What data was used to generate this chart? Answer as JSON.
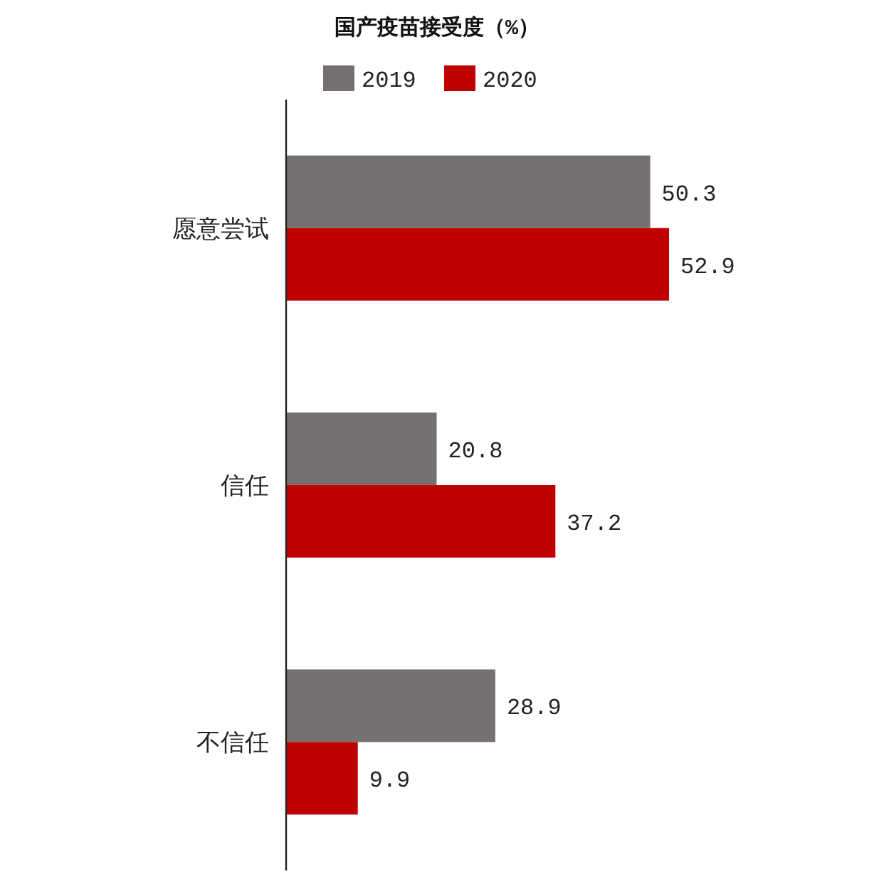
{
  "chart_data": {
    "type": "bar",
    "orientation": "horizontal",
    "title": "国产疫苗接受度（%）",
    "categories": [
      "愿意尝试",
      "信任",
      "不信任"
    ],
    "series": [
      {
        "name": "2019",
        "color": "#767171",
        "values": [
          50.3,
          20.8,
          28.9
        ]
      },
      {
        "name": "2020",
        "color": "#c00000",
        "values": [
          52.9,
          37.2,
          9.9
        ]
      }
    ],
    "data_labels": true,
    "legend": "top"
  }
}
